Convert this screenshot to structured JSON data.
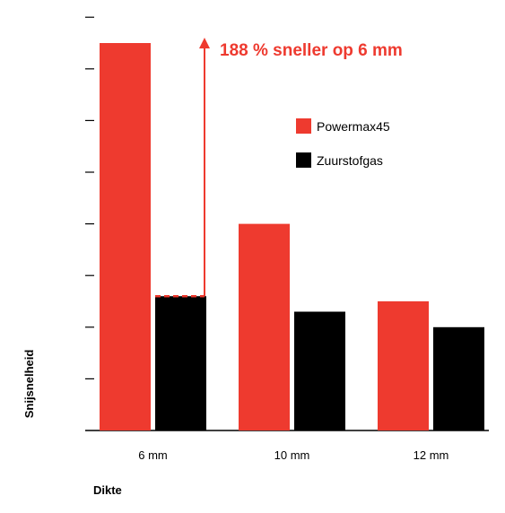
{
  "chart_data": {
    "type": "bar",
    "title": "",
    "xlabel": "Dikte",
    "ylabel": "Snijsnelheid",
    "categories": [
      "6 mm",
      "10 mm",
      "12 mm"
    ],
    "series": [
      {
        "name": "Powermax45",
        "color": "#ee3a2f",
        "values": [
          7.5,
          4.0,
          2.5
        ]
      },
      {
        "name": "Zuurstofgas",
        "color": "#000000",
        "values": [
          2.6,
          2.3,
          2.0
        ]
      }
    ],
    "ylim": [
      0,
      8
    ],
    "y_ticks": [
      1,
      2,
      3,
      4,
      5,
      6,
      7,
      8
    ],
    "y_tick_labels_shown": false,
    "grid": false,
    "legend_position": "upper-right",
    "annotation": {
      "text": "188 % sneller op 6 mm",
      "color": "#ee3a2f",
      "category": "6 mm",
      "from_value": 2.6,
      "to_value": 7.5
    }
  }
}
